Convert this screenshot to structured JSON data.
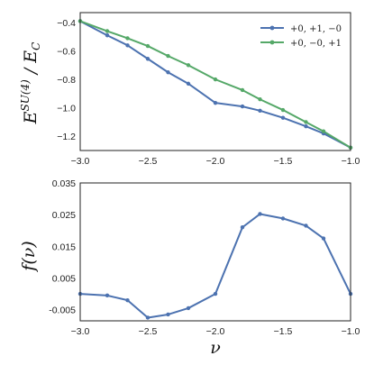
{
  "chart_data": [
    {
      "type": "line",
      "ylabel": "E^{SU(4)} / E_C",
      "xlim": [
        -3.0,
        -1.0
      ],
      "ylim": [
        -1.3,
        -0.33
      ],
      "xticks": [
        "−3.0",
        "−2.5",
        "−2.0",
        "−1.5",
        "−1.0"
      ],
      "yticks": [
        "−0.4",
        "−0.6",
        "−0.8",
        "−1.0",
        "−1.2"
      ],
      "legend_position": "top-right",
      "grid": false,
      "series": [
        {
          "name": "+0, +1, −0",
          "color": "#4c72b0",
          "x": [
            -3.0,
            -2.8,
            -2.65,
            -2.5,
            -2.35,
            -2.2,
            -2.0,
            -1.8,
            -1.67,
            -1.5,
            -1.33,
            -1.2,
            -1.0
          ],
          "y": [
            -0.39,
            -0.49,
            -0.56,
            -0.655,
            -0.75,
            -0.83,
            -0.965,
            -0.99,
            -1.02,
            -1.07,
            -1.13,
            -1.18,
            -1.28
          ]
        },
        {
          "name": "+0, −0, +1",
          "color": "#55a868",
          "x": [
            -3.0,
            -2.8,
            -2.65,
            -2.5,
            -2.35,
            -2.2,
            -2.0,
            -1.8,
            -1.67,
            -1.5,
            -1.33,
            -1.2,
            -1.0
          ],
          "y": [
            -0.39,
            -0.46,
            -0.51,
            -0.565,
            -0.635,
            -0.7,
            -0.8,
            -0.875,
            -0.94,
            -1.015,
            -1.1,
            -1.165,
            -1.28
          ]
        }
      ]
    },
    {
      "type": "line",
      "xlabel": "ν",
      "ylabel": "f(ν)",
      "xlim": [
        -3.0,
        -1.0
      ],
      "ylim": [
        -0.0085,
        0.035
      ],
      "xticks": [
        "−3.0",
        "−2.5",
        "−2.0",
        "−1.5",
        "−1.0"
      ],
      "yticks": [
        "0.035",
        "0.025",
        "0.015",
        "0.005",
        "-0.005"
      ],
      "grid": false,
      "series": [
        {
          "color": "#4c72b0",
          "x": [
            -3.0,
            -2.8,
            -2.65,
            -2.5,
            -2.35,
            -2.2,
            -2.0,
            -1.8,
            -1.67,
            -1.5,
            -1.33,
            -1.2,
            -1.0
          ],
          "y": [
            0.0,
            -0.0005,
            -0.002,
            -0.0075,
            -0.0065,
            -0.0045,
            0.0,
            0.021,
            0.0252,
            0.0238,
            0.0215,
            0.0175,
            0.0
          ]
        }
      ]
    }
  ]
}
